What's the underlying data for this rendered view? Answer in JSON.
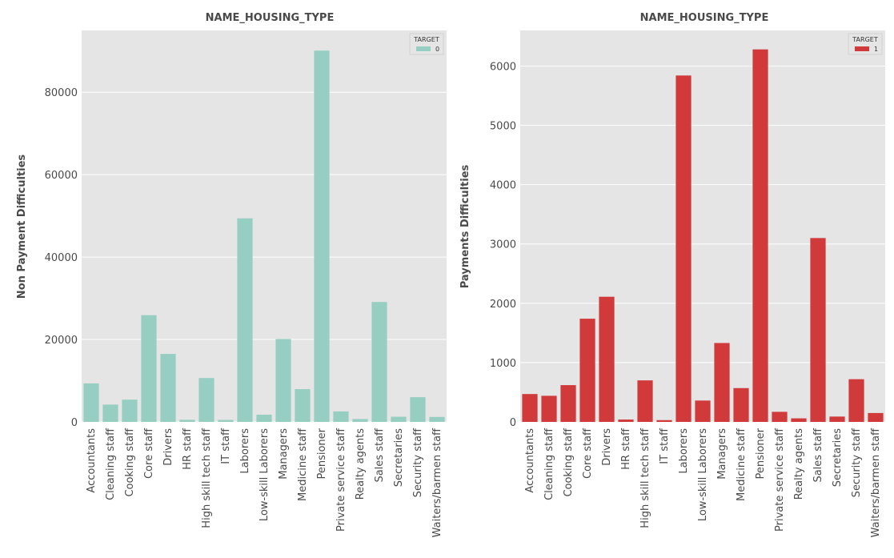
{
  "chart_data": [
    {
      "type": "bar",
      "title": "NAME_HOUSING_TYPE",
      "xlabel": "",
      "ylabel": "Non Payment Difficulties",
      "ylim": [
        0,
        95000
      ],
      "yticks": [
        0,
        20000,
        40000,
        60000,
        80000
      ],
      "grid": true,
      "legend": {
        "title": "TARGET",
        "position": "top-right",
        "entries": [
          {
            "label": "0",
            "color": "#96cec2"
          }
        ]
      },
      "categories": [
        "Accountants",
        "Cleaning staff",
        "Cooking staff",
        "Core staff",
        "Drivers",
        "HR staff",
        "High skill tech staff",
        "IT staff",
        "Laborers",
        "Low-skill Laborers",
        "Managers",
        "Medicine staff",
        "Pensioner",
        "Private service staff",
        "Realty agents",
        "Sales staff",
        "Secretaries",
        "Security staff",
        "Waiters/barmen staff"
      ],
      "values": [
        9350,
        4200,
        5400,
        25900,
        16500,
        520,
        10650,
        480,
        49400,
        1750,
        20100,
        7950,
        90100,
        2550,
        700,
        29100,
        1250,
        6000,
        1200
      ],
      "color": "#96cec2"
    },
    {
      "type": "bar",
      "title": "NAME_HOUSING_TYPE",
      "xlabel": "",
      "ylabel": "Payments Difficulties",
      "ylim": [
        0,
        6600
      ],
      "yticks": [
        0,
        1000,
        2000,
        3000,
        4000,
        5000,
        6000
      ],
      "grid": true,
      "legend": {
        "title": "TARGET",
        "position": "top-right",
        "entries": [
          {
            "label": "1",
            "color": "#d13a3a"
          }
        ]
      },
      "categories": [
        "Accountants",
        "Cleaning staff",
        "Cooking staff",
        "Core staff",
        "Drivers",
        "HR staff",
        "High skill tech staff",
        "IT staff",
        "Laborers",
        "Low-skill Laborers",
        "Managers",
        "Medicine staff",
        "Pensioner",
        "Private service staff",
        "Realty agents",
        "Sales staff",
        "Secretaries",
        "Security staff",
        "Waiters/barmen staff"
      ],
      "values": [
        470,
        440,
        620,
        1740,
        2110,
        40,
        700,
        30,
        5840,
        360,
        1330,
        570,
        6280,
        170,
        60,
        3100,
        90,
        720,
        150
      ],
      "color": "#d13a3a"
    }
  ]
}
